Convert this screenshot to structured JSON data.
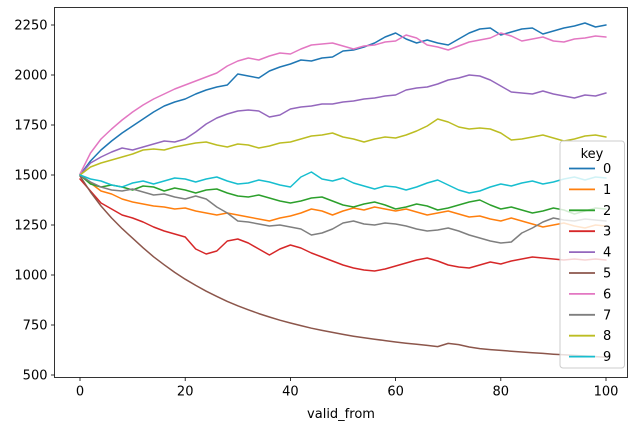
{
  "figure": {
    "background": "#ffffff",
    "axis_color": "#000000",
    "legend_border_color": "#cccccc",
    "legend_background": "rgba(255,255,255,0.8)"
  },
  "chart_data": {
    "type": "line",
    "title": "",
    "xlabel": "valid_from",
    "ylabel": "",
    "grid": false,
    "xlim": [
      -5,
      105
    ],
    "ylim": [
      470,
      2340
    ],
    "x_ticks": [
      0,
      20,
      40,
      60,
      80,
      100
    ],
    "y_ticks": [
      500,
      750,
      1000,
      1250,
      1500,
      1750,
      2000,
      2250
    ],
    "legend": {
      "title": "key",
      "position": "center right"
    },
    "x": [
      0,
      2,
      4,
      6,
      8,
      10,
      12,
      14,
      16,
      18,
      20,
      22,
      24,
      26,
      28,
      30,
      32,
      34,
      36,
      38,
      40,
      42,
      44,
      46,
      48,
      50,
      52,
      54,
      56,
      58,
      60,
      62,
      64,
      66,
      68,
      70,
      72,
      74,
      76,
      78,
      80,
      82,
      84,
      86,
      88,
      90,
      92,
      94,
      96,
      98,
      100
    ],
    "series": [
      {
        "key": "0",
        "color": "#1f77b4",
        "values": [
          1500,
          1570,
          1625,
          1670,
          1710,
          1745,
          1780,
          1815,
          1845,
          1865,
          1880,
          1905,
          1925,
          1940,
          1950,
          2005,
          1995,
          1985,
          2020,
          2040,
          2055,
          2075,
          2070,
          2085,
          2090,
          2120,
          2125,
          2140,
          2160,
          2190,
          2210,
          2180,
          2160,
          2175,
          2160,
          2150,
          2180,
          2210,
          2230,
          2235,
          2200,
          2215,
          2230,
          2235,
          2205,
          2220,
          2235,
          2245,
          2260,
          2240,
          2250
        ]
      },
      {
        "key": "1",
        "color": "#ff7f0e",
        "values": [
          1500,
          1460,
          1420,
          1405,
          1380,
          1365,
          1355,
          1345,
          1340,
          1330,
          1335,
          1320,
          1310,
          1300,
          1310,
          1300,
          1290,
          1280,
          1270,
          1285,
          1295,
          1310,
          1330,
          1320,
          1300,
          1320,
          1335,
          1325,
          1340,
          1330,
          1320,
          1330,
          1315,
          1300,
          1310,
          1320,
          1305,
          1290,
          1295,
          1280,
          1270,
          1285,
          1270,
          1255,
          1240,
          1250,
          1260,
          1245,
          1235,
          1250,
          1245
        ]
      },
      {
        "key": "2",
        "color": "#2ca02c",
        "values": [
          1500,
          1455,
          1440,
          1450,
          1440,
          1425,
          1445,
          1440,
          1420,
          1435,
          1425,
          1410,
          1425,
          1430,
          1410,
          1395,
          1390,
          1400,
          1385,
          1370,
          1360,
          1370,
          1385,
          1390,
          1370,
          1350,
          1340,
          1355,
          1365,
          1350,
          1330,
          1340,
          1355,
          1345,
          1325,
          1335,
          1350,
          1365,
          1375,
          1350,
          1330,
          1340,
          1325,
          1310,
          1320,
          1335,
          1325,
          1305,
          1320,
          1335,
          1330
        ]
      },
      {
        "key": "3",
        "color": "#d62728",
        "values": [
          1480,
          1420,
          1360,
          1330,
          1300,
          1285,
          1265,
          1240,
          1220,
          1205,
          1190,
          1130,
          1105,
          1120,
          1170,
          1180,
          1160,
          1130,
          1100,
          1130,
          1150,
          1135,
          1110,
          1090,
          1070,
          1050,
          1035,
          1025,
          1020,
          1030,
          1045,
          1060,
          1075,
          1085,
          1070,
          1050,
          1040,
          1035,
          1050,
          1065,
          1055,
          1070,
          1080,
          1090,
          1085,
          1080,
          1075,
          1080,
          1075,
          1080,
          1075
        ]
      },
      {
        "key": "4",
        "color": "#9467bd",
        "values": [
          1500,
          1560,
          1590,
          1615,
          1635,
          1625,
          1640,
          1655,
          1670,
          1665,
          1680,
          1715,
          1755,
          1785,
          1805,
          1820,
          1825,
          1820,
          1790,
          1800,
          1830,
          1840,
          1845,
          1855,
          1855,
          1865,
          1870,
          1880,
          1885,
          1895,
          1900,
          1925,
          1935,
          1940,
          1955,
          1975,
          1985,
          2000,
          1995,
          1975,
          1945,
          1915,
          1910,
          1905,
          1920,
          1905,
          1895,
          1885,
          1900,
          1895,
          1910
        ]
      },
      {
        "key": "5",
        "color": "#8c564b",
        "values": [
          1495,
          1415,
          1345,
          1285,
          1232,
          1184,
          1136,
          1091,
          1051,
          1013,
          979,
          948,
          919,
          893,
          868,
          846,
          826,
          807,
          790,
          774,
          760,
          747,
          734,
          723,
          713,
          703,
          694,
          686,
          679,
          672,
          665,
          659,
          654,
          648,
          642,
          658,
          652,
          640,
          632,
          627,
          623,
          619,
          615,
          611,
          608,
          604,
          601,
          598,
          595,
          592,
          589
        ]
      },
      {
        "key": "6",
        "color": "#e377c2",
        "values": [
          1505,
          1610,
          1680,
          1730,
          1775,
          1815,
          1850,
          1880,
          1905,
          1930,
          1950,
          1970,
          1990,
          2010,
          2045,
          2070,
          2085,
          2075,
          2095,
          2110,
          2105,
          2130,
          2150,
          2155,
          2160,
          2145,
          2130,
          2145,
          2150,
          2165,
          2170,
          2200,
          2185,
          2150,
          2140,
          2125,
          2145,
          2165,
          2175,
          2185,
          2210,
          2195,
          2170,
          2180,
          2190,
          2170,
          2165,
          2180,
          2185,
          2195,
          2190
        ]
      },
      {
        "key": "7",
        "color": "#7f7f7f",
        "values": [
          1500,
          1465,
          1440,
          1425,
          1420,
          1430,
          1415,
          1400,
          1405,
          1390,
          1380,
          1395,
          1380,
          1340,
          1310,
          1270,
          1265,
          1255,
          1245,
          1250,
          1240,
          1230,
          1200,
          1210,
          1230,
          1260,
          1270,
          1255,
          1250,
          1260,
          1255,
          1245,
          1230,
          1220,
          1225,
          1235,
          1220,
          1200,
          1185,
          1170,
          1160,
          1165,
          1210,
          1235,
          1265,
          1285,
          1275,
          1270,
          1280,
          1275,
          1270
        ]
      },
      {
        "key": "8",
        "color": "#bcbd22",
        "values": [
          1500,
          1540,
          1560,
          1575,
          1590,
          1605,
          1625,
          1630,
          1625,
          1640,
          1650,
          1660,
          1665,
          1650,
          1640,
          1655,
          1650,
          1635,
          1645,
          1660,
          1665,
          1680,
          1695,
          1700,
          1710,
          1690,
          1680,
          1665,
          1680,
          1690,
          1685,
          1700,
          1720,
          1745,
          1780,
          1765,
          1740,
          1730,
          1735,
          1730,
          1710,
          1675,
          1680,
          1690,
          1700,
          1685,
          1670,
          1680,
          1695,
          1700,
          1690
        ]
      },
      {
        "key": "9",
        "color": "#17becf",
        "values": [
          1500,
          1480,
          1470,
          1450,
          1440,
          1460,
          1470,
          1455,
          1470,
          1485,
          1480,
          1465,
          1480,
          1490,
          1470,
          1455,
          1460,
          1475,
          1465,
          1450,
          1440,
          1490,
          1515,
          1480,
          1470,
          1485,
          1460,
          1445,
          1430,
          1445,
          1440,
          1425,
          1440,
          1460,
          1475,
          1450,
          1425,
          1410,
          1420,
          1440,
          1455,
          1445,
          1460,
          1470,
          1455,
          1465,
          1480,
          1490,
          1475,
          1490,
          1485
        ]
      }
    ]
  }
}
